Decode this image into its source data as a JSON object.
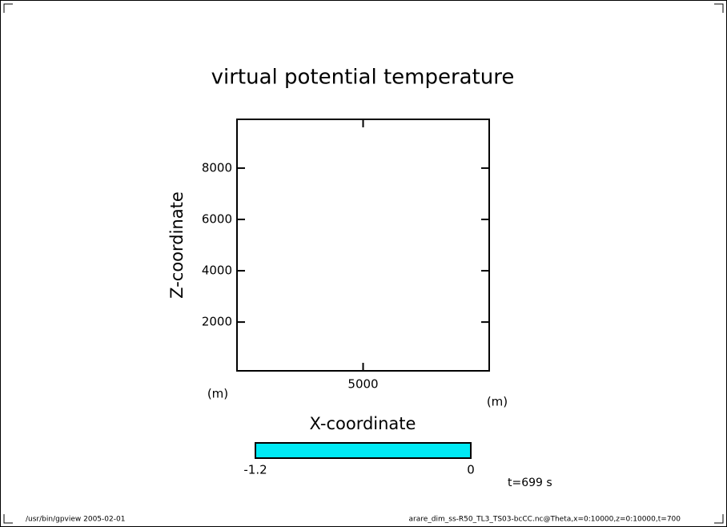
{
  "chart_data": {
    "type": "contour",
    "title": "virtual potential temperature",
    "xlabel": "X-coordinate",
    "ylabel": "Z-coordinate",
    "xunit": "(m)",
    "yunit": "(m)",
    "xlim": [
      100,
      9900
    ],
    "ylim": [
      100,
      9900
    ],
    "xticks": [
      5000
    ],
    "yticks": [
      2000,
      4000,
      6000,
      8000
    ],
    "colorbar": {
      "lim": [
        -1.2,
        0
      ],
      "ticks": [
        -1.2,
        0
      ],
      "color": "#00eaf5"
    },
    "time": "t=699 s",
    "footer_left": "/usr/bin/gpview  2005-02-01",
    "footer_right": "arare_dim_ss-R50_TL3_TS03-bcCC.nc@Theta,x=0:10000,z=0:10000,t=700"
  }
}
